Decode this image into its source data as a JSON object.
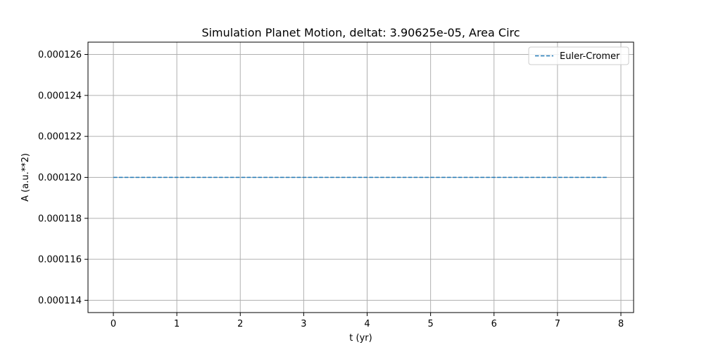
{
  "chart_data": {
    "type": "line",
    "title": "Simulation Planet Motion, deltat: 3.90625e-05, Area Circ",
    "xlabel": "t (yr)",
    "ylabel": "A (a.u.**2)",
    "xlim": [
      -0.4,
      8.2
    ],
    "ylim": [
      0.0001134,
      0.0001266
    ],
    "x_ticks": [
      0,
      1,
      2,
      3,
      4,
      5,
      6,
      7,
      8
    ],
    "x_tick_labels": [
      "0",
      "1",
      "2",
      "3",
      "4",
      "5",
      "6",
      "7",
      "8"
    ],
    "y_ticks": [
      0.000114,
      0.000116,
      0.000118,
      0.00012,
      0.000122,
      0.000124,
      0.000126
    ],
    "y_tick_labels": [
      "0.000114",
      "0.000116",
      "0.000118",
      "0.000120",
      "0.000122",
      "0.000124",
      "0.000126"
    ],
    "grid": true,
    "legend_position": "top-right",
    "series": [
      {
        "name": "Euler-Cromer",
        "style": "dashed",
        "color": "#1f77b4",
        "x": [
          0,
          7.8
        ],
        "y": [
          0.00012,
          0.00012
        ]
      }
    ]
  }
}
